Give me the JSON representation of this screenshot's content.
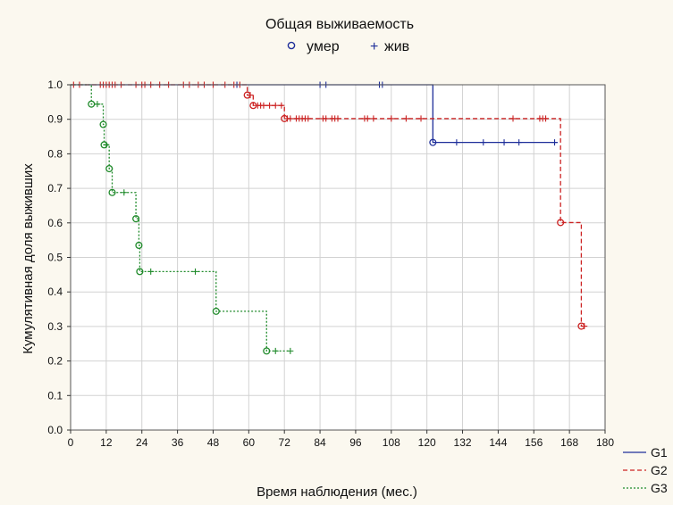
{
  "chart_data": {
    "type": "line",
    "title": "Общая выживаемость",
    "marker_legend": [
      {
        "symbol": "o",
        "label": "умер"
      },
      {
        "symbol": "+",
        "label": "жив"
      }
    ],
    "xlabel": "Время наблюдения (мес.)",
    "ylabel": "Кумулятивная доля выживших",
    "xlim": [
      0,
      180
    ],
    "ylim": [
      0,
      1.0
    ],
    "xticks": [
      0,
      12,
      24,
      36,
      48,
      60,
      72,
      84,
      96,
      108,
      120,
      132,
      144,
      156,
      168,
      180
    ],
    "yticks": [
      0.0,
      0.1,
      0.2,
      0.3,
      0.4,
      0.5,
      0.6,
      0.7,
      0.8,
      0.9,
      1.0
    ],
    "grid": true,
    "legend_position": "bottom-right",
    "series": [
      {
        "name": "G1",
        "color": "#1f2f9a",
        "dash": "solid",
        "steps": [
          [
            0,
            1.0
          ],
          [
            122,
            0.833
          ],
          [
            164,
            0.833
          ]
        ],
        "events": [
          [
            122,
            0.833
          ]
        ],
        "censored": [
          [
            56,
            1.0
          ],
          [
            84,
            1.0
          ],
          [
            86,
            1.0
          ],
          [
            104,
            1.0
          ],
          [
            105,
            1.0
          ],
          [
            130,
            0.833
          ],
          [
            139,
            0.833
          ],
          [
            146,
            0.833
          ],
          [
            151,
            0.833
          ],
          [
            163,
            0.833
          ]
        ]
      },
      {
        "name": "G2",
        "color": "#cc2222",
        "dash": "dashed",
        "steps": [
          [
            0,
            1.0
          ],
          [
            59.5,
            0.97
          ],
          [
            61.5,
            0.94
          ],
          [
            72,
            0.902
          ],
          [
            165,
            0.601
          ],
          [
            172,
            0.301
          ],
          [
            173,
            0.301
          ]
        ],
        "events": [
          [
            59.5,
            0.97
          ],
          [
            61.5,
            0.94
          ],
          [
            72,
            0.902
          ],
          [
            165,
            0.601
          ],
          [
            172,
            0.301
          ]
        ],
        "censored": [
          [
            1,
            1.0
          ],
          [
            3,
            1.0
          ],
          [
            10,
            1.0
          ],
          [
            11,
            1.0
          ],
          [
            12,
            1.0
          ],
          [
            13,
            1.0
          ],
          [
            14,
            1.0
          ],
          [
            15,
            1.0
          ],
          [
            17,
            1.0
          ],
          [
            22,
            1.0
          ],
          [
            24,
            1.0
          ],
          [
            25,
            1.0
          ],
          [
            27,
            1.0
          ],
          [
            30,
            1.0
          ],
          [
            33,
            1.0
          ],
          [
            38,
            1.0
          ],
          [
            40,
            1.0
          ],
          [
            43,
            1.0
          ],
          [
            45,
            1.0
          ],
          [
            48,
            1.0
          ],
          [
            52,
            1.0
          ],
          [
            55,
            1.0
          ],
          [
            57,
            1.0
          ],
          [
            60.5,
            0.97
          ],
          [
            63,
            0.94
          ],
          [
            64,
            0.94
          ],
          [
            65,
            0.94
          ],
          [
            67,
            0.94
          ],
          [
            69,
            0.94
          ],
          [
            71,
            0.94
          ],
          [
            73,
            0.902
          ],
          [
            74,
            0.902
          ],
          [
            76,
            0.902
          ],
          [
            77,
            0.902
          ],
          [
            78,
            0.902
          ],
          [
            79,
            0.902
          ],
          [
            80,
            0.902
          ],
          [
            85,
            0.902
          ],
          [
            86,
            0.902
          ],
          [
            88,
            0.902
          ],
          [
            89,
            0.902
          ],
          [
            90,
            0.902
          ],
          [
            99,
            0.902
          ],
          [
            100,
            0.902
          ],
          [
            102,
            0.902
          ],
          [
            108,
            0.902
          ],
          [
            113,
            0.902
          ],
          [
            118,
            0.902
          ],
          [
            149,
            0.902
          ],
          [
            158,
            0.902
          ],
          [
            159,
            0.902
          ],
          [
            160,
            0.902
          ],
          [
            173,
            0.301
          ]
        ]
      },
      {
        "name": "G3",
        "color": "#1f8a2a",
        "dash": "dotted",
        "steps": [
          [
            0,
            1.0
          ],
          [
            7,
            0.944
          ],
          [
            11,
            0.885
          ],
          [
            11.3,
            0.826
          ],
          [
            13,
            0.757
          ],
          [
            14,
            0.688
          ],
          [
            22,
            0.612
          ],
          [
            23,
            0.535
          ],
          [
            23.3,
            0.459
          ],
          [
            49,
            0.344
          ],
          [
            66,
            0.229
          ],
          [
            74,
            0.229
          ]
        ],
        "events": [
          [
            7,
            0.944
          ],
          [
            11,
            0.885
          ],
          [
            11.3,
            0.826
          ],
          [
            13,
            0.757
          ],
          [
            14,
            0.688
          ],
          [
            22,
            0.612
          ],
          [
            23,
            0.535
          ],
          [
            23.3,
            0.459
          ],
          [
            49,
            0.344
          ],
          [
            66,
            0.229
          ]
        ],
        "censored": [
          [
            9,
            0.944
          ],
          [
            12,
            0.826
          ],
          [
            18,
            0.688
          ],
          [
            27,
            0.459
          ],
          [
            42,
            0.459
          ],
          [
            69,
            0.229
          ],
          [
            74,
            0.229
          ]
        ]
      }
    ]
  }
}
